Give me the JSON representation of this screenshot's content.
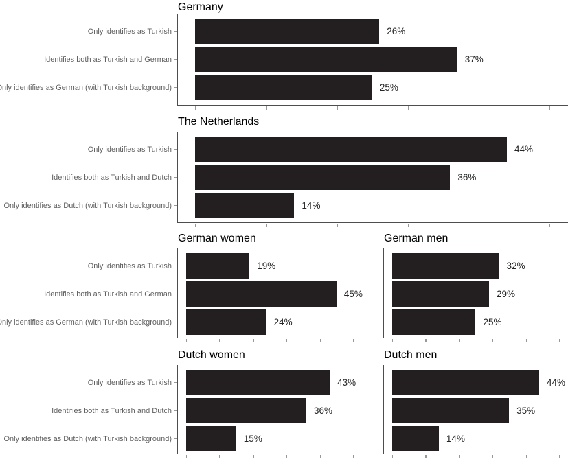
{
  "figure": {
    "background": "#ffffff",
    "description": "Six horizontal bar charts on Turkish identity in Germany and the Netherlands"
  },
  "colors": {
    "bar": "#231f20",
    "axis_line": "#4d4d4d",
    "tick": "#999999",
    "category_label": "#606060",
    "value_label": "#262626",
    "title": "#000000"
  },
  "axis": {
    "tick_values": [
      0,
      10,
      20,
      30,
      40,
      50
    ],
    "tick_labels_shown": false,
    "grid": "off",
    "xlim": [
      0,
      52
    ]
  },
  "chart_data": [
    {
      "type": "bar",
      "orientation": "horizontal",
      "title": "Germany",
      "categories": [
        "Only identifies as Turkish",
        "Identifies both as Turkish and German",
        "Only identifies as German (with Turkish background)"
      ],
      "category_labels_shown": true,
      "values": [
        26,
        37,
        25
      ],
      "value_labels": [
        "26%",
        "37%",
        "25%"
      ]
    },
    {
      "type": "bar",
      "orientation": "horizontal",
      "title": "The Netherlands",
      "categories": [
        "Only identifies as Turkish",
        "Identifies both as Turkish and Dutch",
        "Only identifies as Dutch (with Turkish background)"
      ],
      "category_labels_shown": true,
      "values": [
        44,
        36,
        14
      ],
      "value_labels": [
        "44%",
        "36%",
        "14%"
      ]
    },
    {
      "type": "bar",
      "orientation": "horizontal",
      "title": "German women",
      "categories": [
        "Only identifies as Turkish",
        "Identifies both as Turkish and German",
        "Only identifies as German (with Turkish background)"
      ],
      "category_labels_shown": true,
      "values": [
        19,
        45,
        24
      ],
      "value_labels": [
        "19%",
        "45%",
        "24%"
      ]
    },
    {
      "type": "bar",
      "orientation": "horizontal",
      "title": "German men",
      "categories": [
        "Only identifies as Turkish",
        "Identifies both as Turkish and German",
        "Only identifies as German (with Turkish background)"
      ],
      "category_labels_shown": false,
      "values": [
        32,
        29,
        25
      ],
      "value_labels": [
        "32%",
        "29%",
        "25%"
      ]
    },
    {
      "type": "bar",
      "orientation": "horizontal",
      "title": "Dutch women",
      "categories": [
        "Only identifies as Turkish",
        "Identifies both as Turkish and Dutch",
        "Only identifies as Dutch (with Turkish background)"
      ],
      "category_labels_shown": true,
      "values": [
        43,
        36,
        15
      ],
      "value_labels": [
        "43%",
        "36%",
        "15%"
      ]
    },
    {
      "type": "bar",
      "orientation": "horizontal",
      "title": "Dutch men",
      "categories": [
        "Only identifies as Turkish",
        "Identifies both as Turkish and Dutch",
        "Only identifies as Dutch (with Turkish background)"
      ],
      "category_labels_shown": false,
      "values": [
        44,
        35,
        14
      ],
      "value_labels": [
        "44%",
        "35%",
        "14%"
      ]
    }
  ]
}
